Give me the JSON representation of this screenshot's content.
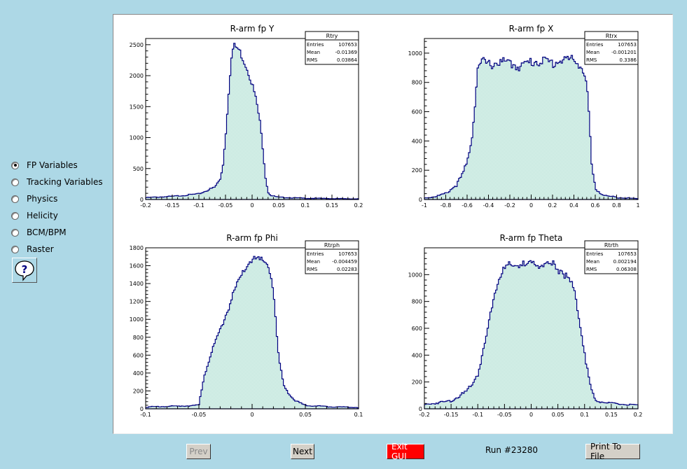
{
  "sidebar": {
    "options": [
      {
        "label": "FP Variables",
        "checked": true
      },
      {
        "label": "Tracking Variables",
        "checked": false
      },
      {
        "label": "Physics",
        "checked": false
      },
      {
        "label": "Helicity",
        "checked": false
      },
      {
        "label": "BCM/BPM",
        "checked": false
      },
      {
        "label": "Raster",
        "checked": false
      }
    ],
    "help_icon": "question-mark-icon"
  },
  "buttons": {
    "prev": "Prev",
    "next": "Next",
    "exit": "Exit GUI",
    "print": "Print To File"
  },
  "run_label": "Run #23280",
  "colors": {
    "line": "#000080",
    "fill": "#9fd9c9",
    "exit": "#ff0000"
  },
  "chart_data": [
    {
      "type": "bar",
      "title": "R-arm fp Y",
      "xlim": [
        -0.2,
        0.2
      ],
      "ylim": [
        0,
        2600
      ],
      "xticks": [
        -0.2,
        -0.15,
        -0.1,
        -0.05,
        0,
        0.05,
        0.1,
        0.15,
        0.2
      ],
      "yticks": [
        0,
        500,
        1000,
        1500,
        2000,
        2500
      ],
      "x": [
        -0.2,
        -0.15,
        -0.1,
        -0.07,
        -0.06,
        -0.055,
        -0.05,
        -0.045,
        -0.04,
        -0.035,
        -0.03,
        -0.025,
        -0.02,
        -0.015,
        -0.01,
        -0.005,
        0,
        0.005,
        0.01,
        0.015,
        0.02,
        0.025,
        0.03,
        0.035,
        0.04,
        0.045,
        0.05,
        0.07,
        0.1,
        0.15,
        0.2
      ],
      "values": [
        30,
        50,
        90,
        200,
        330,
        540,
        1000,
        1620,
        2200,
        2480,
        2460,
        2420,
        2330,
        2230,
        2130,
        2010,
        1870,
        1700,
        1500,
        1230,
        850,
        380,
        120,
        70,
        55,
        45,
        35,
        30,
        20,
        15,
        10
      ],
      "stats": {
        "name": "Rtry",
        "entries": "107653",
        "mean": "-0.01369",
        "rms": "0.03864"
      }
    },
    {
      "type": "bar",
      "title": "R-arm fp X",
      "xlim": [
        -1,
        1
      ],
      "ylim": [
        0,
        1100
      ],
      "xticks": [
        -1,
        -0.8,
        -0.6,
        -0.4,
        -0.2,
        0,
        0.2,
        0.4,
        0.6,
        0.8,
        1
      ],
      "yticks": [
        0,
        200,
        400,
        600,
        800,
        1000
      ],
      "x": [
        -1,
        -0.9,
        -0.8,
        -0.7,
        -0.65,
        -0.6,
        -0.55,
        -0.52,
        -0.5,
        -0.45,
        -0.4,
        -0.3,
        -0.2,
        -0.1,
        0,
        0.1,
        0.2,
        0.3,
        0.4,
        0.45,
        0.5,
        0.53,
        0.55,
        0.57,
        0.6,
        0.65,
        0.7,
        0.8,
        0.9,
        1
      ],
      "values": [
        10,
        20,
        40,
        100,
        160,
        250,
        450,
        720,
        900,
        940,
        920,
        940,
        930,
        910,
        940,
        950,
        930,
        960,
        950,
        930,
        860,
        700,
        450,
        200,
        80,
        40,
        25,
        15,
        10,
        5
      ],
      "stats": {
        "name": "Rtrx",
        "entries": "107653",
        "mean": "-0.001201",
        "rms": "0.3386"
      }
    },
    {
      "type": "bar",
      "title": "R-arm fp Phi",
      "xlim": [
        -0.1,
        0.1
      ],
      "ylim": [
        0,
        1800
      ],
      "xticks": [
        -0.1,
        -0.05,
        0,
        0.05,
        0.1
      ],
      "yticks": [
        0,
        200,
        400,
        600,
        800,
        1000,
        1200,
        1400,
        1600,
        1800
      ],
      "x": [
        -0.1,
        -0.07,
        -0.05,
        -0.045,
        -0.04,
        -0.035,
        -0.03,
        -0.025,
        -0.02,
        -0.015,
        -0.01,
        -0.005,
        0,
        0.005,
        0.01,
        0.015,
        0.02,
        0.022,
        0.025,
        0.03,
        0.04,
        0.05,
        0.07,
        0.1
      ],
      "values": [
        20,
        30,
        40,
        380,
        560,
        720,
        880,
        1040,
        1200,
        1360,
        1480,
        1600,
        1680,
        1660,
        1650,
        1620,
        1350,
        1000,
        560,
        250,
        90,
        40,
        25,
        15
      ],
      "stats": {
        "name": "Rtrph",
        "entries": "107653",
        "mean": "-0.004459",
        "rms": "0.02283"
      }
    },
    {
      "type": "bar",
      "title": "R-arm fp Theta",
      "xlim": [
        -0.2,
        0.2
      ],
      "ylim": [
        0,
        1200
      ],
      "xticks": [
        -0.2,
        -0.15,
        -0.1,
        -0.05,
        0,
        0.05,
        0.1,
        0.15,
        0.2
      ],
      "yticks": [
        0,
        200,
        400,
        600,
        800,
        1000
      ],
      "x": [
        -0.2,
        -0.15,
        -0.12,
        -0.1,
        -0.09,
        -0.08,
        -0.07,
        -0.06,
        -0.05,
        -0.04,
        -0.03,
        -0.02,
        -0.01,
        0,
        0.01,
        0.02,
        0.03,
        0.04,
        0.05,
        0.06,
        0.07,
        0.08,
        0.09,
        0.1,
        0.11,
        0.12,
        0.15,
        0.2
      ],
      "values": [
        30,
        60,
        130,
        260,
        420,
        620,
        850,
        980,
        1040,
        1060,
        1070,
        1080,
        1060,
        1070,
        1090,
        1080,
        1060,
        1070,
        1050,
        1020,
        970,
        880,
        680,
        420,
        180,
        60,
        40,
        25
      ],
      "stats": {
        "name": "Rtrth",
        "entries": "107653",
        "mean": "0.002194",
        "rms": "0.06308"
      }
    }
  ]
}
